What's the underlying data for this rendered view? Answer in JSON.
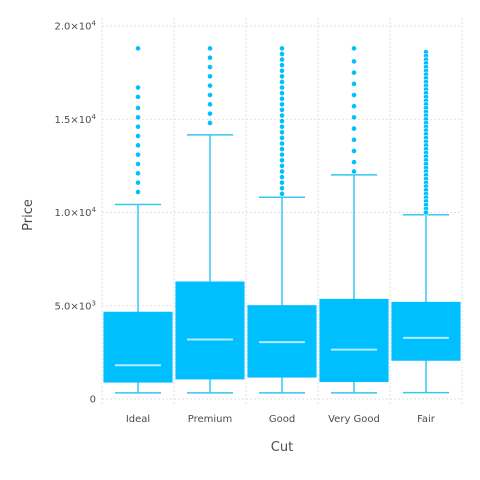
{
  "chart_data": {
    "type": "box",
    "xlabel": "Cut",
    "ylabel": "Price",
    "ylim": [
      0,
      20000
    ],
    "y_ticks": [
      {
        "value": 0,
        "base": "0",
        "exp": ""
      },
      {
        "value": 5000,
        "base": "5.0×10",
        "exp": "3"
      },
      {
        "value": 10000,
        "base": "1.0×10",
        "exp": "4"
      },
      {
        "value": 15000,
        "base": "1.5×10",
        "exp": "4"
      },
      {
        "value": 20000,
        "base": "2.0×10",
        "exp": "4"
      }
    ],
    "grid": true,
    "colors": {
      "box": "#00bfff",
      "whisker": "#35c7f0",
      "median": "#b3ecff",
      "outlier": "#00bfff",
      "grid": "#d9d9d9"
    },
    "categories": [
      "Ideal",
      "Premium",
      "Good",
      "Very Good",
      "Fair"
    ],
    "boxes": [
      {
        "category": "Ideal",
        "lower_whisker": 330,
        "q1": 880,
        "median": 1810,
        "q3": 4680,
        "upper_whisker": 10430,
        "outliers": [
          18800,
          16700,
          16200,
          15600,
          15100,
          14600,
          14100,
          13600,
          13100,
          12600,
          12100,
          11600,
          11100
        ]
      },
      {
        "category": "Premium",
        "lower_whisker": 330,
        "q1": 1050,
        "median": 3190,
        "q3": 6300,
        "upper_whisker": 14160,
        "outliers": [
          18800,
          18300,
          17800,
          17300,
          16800,
          16300,
          15800,
          15300,
          14800
        ]
      },
      {
        "category": "Good",
        "lower_whisker": 330,
        "q1": 1150,
        "median": 3050,
        "q3": 5030,
        "upper_whisker": 10820,
        "outliers": [
          18800,
          18500,
          18200,
          17900,
          17600,
          17300,
          17000,
          16700,
          16400,
          16100,
          15800,
          15500,
          15200,
          14900,
          14600,
          14300,
          14000,
          13700,
          13400,
          13100,
          12800,
          12500,
          12200,
          11900,
          11600,
          11300,
          11000
        ]
      },
      {
        "category": "Very Good",
        "lower_whisker": 330,
        "q1": 910,
        "median": 2650,
        "q3": 5370,
        "upper_whisker": 12020,
        "outliers": [
          18800,
          18100,
          17500,
          16900,
          16300,
          15700,
          15100,
          14500,
          13900,
          13300,
          12700,
          12200
        ]
      },
      {
        "category": "Fair",
        "lower_whisker": 340,
        "q1": 2050,
        "median": 3280,
        "q3": 5210,
        "upper_whisker": 9880,
        "outliers": [
          18600,
          18400,
          18200,
          18000,
          17800,
          17600,
          17400,
          17200,
          17000,
          16800,
          16600,
          16400,
          16200,
          16000,
          15800,
          15600,
          15400,
          15200,
          15000,
          14800,
          14600,
          14400,
          14200,
          14000,
          13800,
          13600,
          13400,
          13200,
          13000,
          12800,
          12600,
          12400,
          12200,
          12000,
          11800,
          11600,
          11400,
          11200,
          11000,
          10800,
          10600,
          10400,
          10200,
          10000
        ]
      }
    ]
  }
}
